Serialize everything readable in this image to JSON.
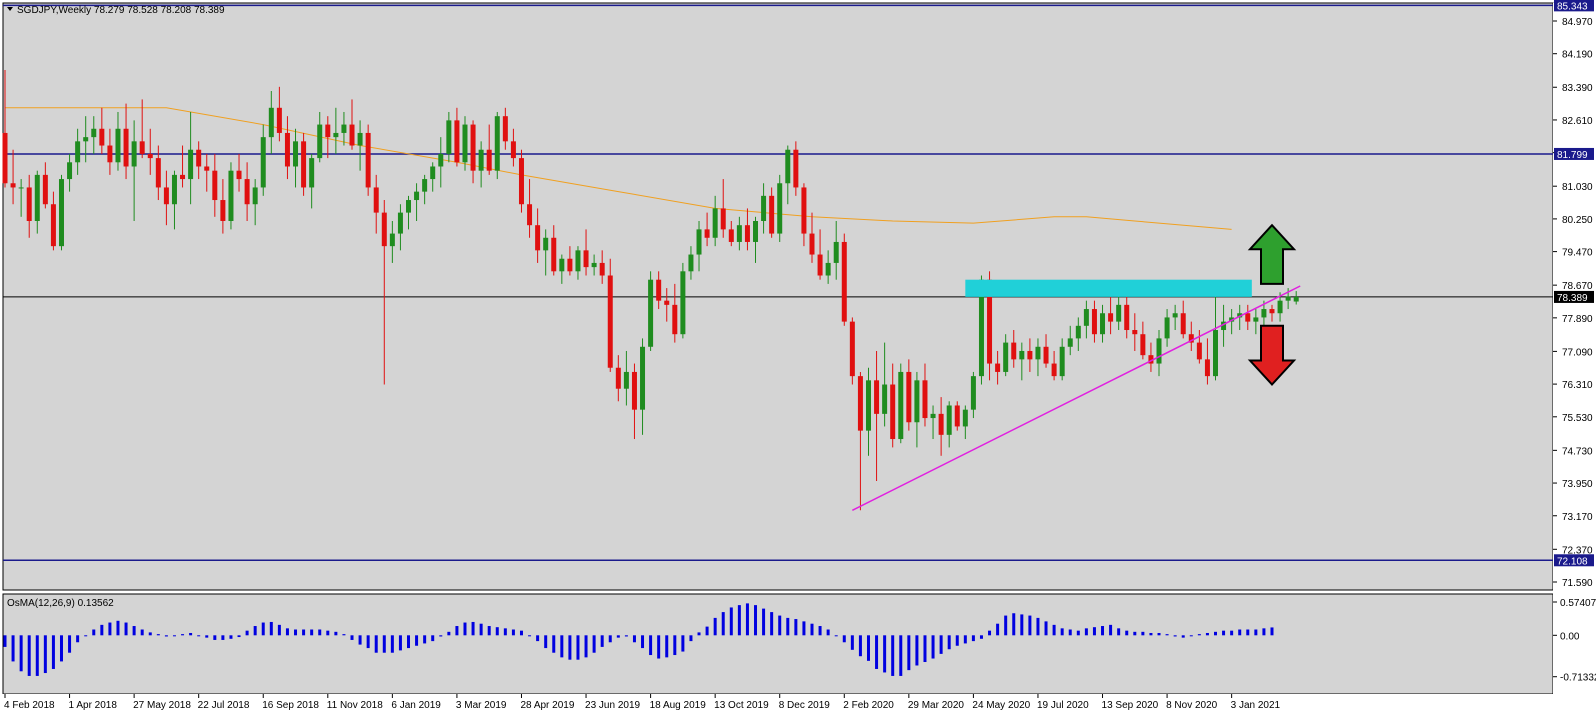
{
  "chart_data": {
    "type": "candlestick",
    "title": "SGDJPY,Weekly  78.279 78.528 78.208 78.389",
    "symbol": "SGDJPY",
    "timeframe": "Weekly",
    "ohlc_last": {
      "open": 78.279,
      "high": 78.528,
      "low": 78.208,
      "close": 78.389
    },
    "ylim": [
      71.2,
      85.5
    ],
    "y_ticks": [
      "84.970",
      "84.190",
      "83.390",
      "82.610",
      "81.830",
      "81.030",
      "80.250",
      "79.470",
      "78.670",
      "77.890",
      "77.090",
      "76.310",
      "75.530",
      "74.730",
      "73.950",
      "73.170",
      "72.370",
      "71.590"
    ],
    "y_tick_values": [
      84.97,
      84.19,
      83.39,
      82.61,
      81.83,
      81.03,
      80.25,
      79.47,
      78.67,
      77.89,
      77.09,
      76.31,
      75.53,
      74.73,
      73.95,
      73.17,
      72.37,
      71.59
    ],
    "x_tick_labels": [
      "4 Feb 2018",
      "1 Apr 2018",
      "27 May 2018",
      "22 Jul 2018",
      "16 Sep 2018",
      "11 Nov 2018",
      "6 Jan 2019",
      "3 Mar 2019",
      "28 Apr 2019",
      "23 Jun 2019",
      "18 Aug 2019",
      "13 Oct 2019",
      "8 Dec 2019",
      "2 Feb 2020",
      "29 Mar 2020",
      "24 May 2020",
      "19 Jul 2020",
      "13 Sep 2020",
      "8 Nov 2020",
      "3 Jan 2021"
    ],
    "x_tick_week_index": [
      0,
      8,
      16,
      24,
      32,
      40,
      48,
      56,
      64,
      72,
      80,
      88,
      96,
      104,
      112,
      120,
      128,
      136,
      144,
      152
    ],
    "candles": [
      [
        82.3,
        83.8,
        81.0,
        81.1
      ],
      [
        81.1,
        81.9,
        80.6,
        81.0
      ],
      [
        81.0,
        81.2,
        80.3,
        81.0
      ],
      [
        81.0,
        81.3,
        79.8,
        80.2
      ],
      [
        80.2,
        81.4,
        79.9,
        81.3
      ],
      [
        81.3,
        81.6,
        80.5,
        80.6
      ],
      [
        80.6,
        80.9,
        79.5,
        79.6
      ],
      [
        79.6,
        81.3,
        79.5,
        81.2
      ],
      [
        81.2,
        81.8,
        80.9,
        81.6
      ],
      [
        81.6,
        82.4,
        81.3,
        82.1
      ],
      [
        82.1,
        82.7,
        81.6,
        82.2
      ],
      [
        82.2,
        82.7,
        81.8,
        82.4
      ],
      [
        82.4,
        82.9,
        81.8,
        82.0
      ],
      [
        82.0,
        82.4,
        81.3,
        81.6
      ],
      [
        81.6,
        82.8,
        81.4,
        82.4
      ],
      [
        82.4,
        83.0,
        81.2,
        81.5
      ],
      [
        81.5,
        82.6,
        80.2,
        82.1
      ],
      [
        82.1,
        83.1,
        81.7,
        81.8
      ],
      [
        81.8,
        82.4,
        81.3,
        81.7
      ],
      [
        81.7,
        82.0,
        80.7,
        81.0
      ],
      [
        81.0,
        81.4,
        80.1,
        80.6
      ],
      [
        80.6,
        81.4,
        80.0,
        81.3
      ],
      [
        81.3,
        82.0,
        81.0,
        81.2
      ],
      [
        81.2,
        82.8,
        80.6,
        81.9
      ],
      [
        81.9,
        82.1,
        81.2,
        81.5
      ],
      [
        81.5,
        81.8,
        80.9,
        81.4
      ],
      [
        81.4,
        81.8,
        80.3,
        80.7
      ],
      [
        80.7,
        81.2,
        79.9,
        80.2
      ],
      [
        80.2,
        81.6,
        80.0,
        81.4
      ],
      [
        81.4,
        81.8,
        80.9,
        81.2
      ],
      [
        81.2,
        81.6,
        80.2,
        80.6
      ],
      [
        80.6,
        81.2,
        80.1,
        81.0
      ],
      [
        81.0,
        82.5,
        80.8,
        82.2
      ],
      [
        82.2,
        83.3,
        81.8,
        82.9
      ],
      [
        82.9,
        83.4,
        82.1,
        82.3
      ],
      [
        82.3,
        82.7,
        81.2,
        81.5
      ],
      [
        81.5,
        82.4,
        81.0,
        82.1
      ],
      [
        82.1,
        82.3,
        80.8,
        81.0
      ],
      [
        81.0,
        81.8,
        80.5,
        81.7
      ],
      [
        81.7,
        82.8,
        81.6,
        82.5
      ],
      [
        82.5,
        82.7,
        81.7,
        82.2
      ],
      [
        82.2,
        82.9,
        81.8,
        82.3
      ],
      [
        82.3,
        82.8,
        82.0,
        82.5
      ],
      [
        82.5,
        83.1,
        81.9,
        82.0
      ],
      [
        82.0,
        82.6,
        81.4,
        82.3
      ],
      [
        82.3,
        82.5,
        80.8,
        81.0
      ],
      [
        81.0,
        81.3,
        79.9,
        80.4
      ],
      [
        80.4,
        80.7,
        76.3,
        79.6
      ],
      [
        79.6,
        80.2,
        79.2,
        79.9
      ],
      [
        79.9,
        80.6,
        79.5,
        80.4
      ],
      [
        80.4,
        80.8,
        80.0,
        80.7
      ],
      [
        80.7,
        81.1,
        80.2,
        80.9
      ],
      [
        80.9,
        81.3,
        80.6,
        81.2
      ],
      [
        81.2,
        81.6,
        80.9,
        81.5
      ],
      [
        81.5,
        82.2,
        81.0,
        81.8
      ],
      [
        81.8,
        82.8,
        81.6,
        82.6
      ],
      [
        82.6,
        82.9,
        81.5,
        81.6
      ],
      [
        81.6,
        82.7,
        81.4,
        82.5
      ],
      [
        82.5,
        82.6,
        81.1,
        81.4
      ],
      [
        81.4,
        82.1,
        81.0,
        81.9
      ],
      [
        81.9,
        82.5,
        81.3,
        81.4
      ],
      [
        81.4,
        82.8,
        81.2,
        82.7
      ],
      [
        82.7,
        82.9,
        81.9,
        82.1
      ],
      [
        82.1,
        82.4,
        81.5,
        81.7
      ],
      [
        81.7,
        81.9,
        80.4,
        80.6
      ],
      [
        80.6,
        81.2,
        79.8,
        80.1
      ],
      [
        80.1,
        80.5,
        79.2,
        79.5
      ],
      [
        79.5,
        80.0,
        78.9,
        79.8
      ],
      [
        79.8,
        80.1,
        78.9,
        79.0
      ],
      [
        79.0,
        79.4,
        78.7,
        79.3
      ],
      [
        79.3,
        79.6,
        78.9,
        79.0
      ],
      [
        79.0,
        79.6,
        78.8,
        79.5
      ],
      [
        79.5,
        80.0,
        78.9,
        79.1
      ],
      [
        79.1,
        79.4,
        78.9,
        79.2
      ],
      [
        79.2,
        79.5,
        78.7,
        78.9
      ],
      [
        78.9,
        79.3,
        76.6,
        76.7
      ],
      [
        76.7,
        77.0,
        75.9,
        76.2
      ],
      [
        76.2,
        77.1,
        75.8,
        76.6
      ],
      [
        76.6,
        76.8,
        75.0,
        75.7
      ],
      [
        75.7,
        77.4,
        75.1,
        77.2
      ],
      [
        77.2,
        79.0,
        77.1,
        78.8
      ],
      [
        78.8,
        79.0,
        78.1,
        78.3
      ],
      [
        78.3,
        78.6,
        77.8,
        78.2
      ],
      [
        78.2,
        78.7,
        77.3,
        77.5
      ],
      [
        77.5,
        79.2,
        77.4,
        79.0
      ],
      [
        79.0,
        79.6,
        78.8,
        79.4
      ],
      [
        79.4,
        80.2,
        79.0,
        80.0
      ],
      [
        80.0,
        80.4,
        79.6,
        79.8
      ],
      [
        79.8,
        80.8,
        79.6,
        80.5
      ],
      [
        80.5,
        81.2,
        79.8,
        80.0
      ],
      [
        80.0,
        80.2,
        79.6,
        79.7
      ],
      [
        79.7,
        80.3,
        79.5,
        80.1
      ],
      [
        80.1,
        80.5,
        79.5,
        79.7
      ],
      [
        79.7,
        80.3,
        79.2,
        80.2
      ],
      [
        80.2,
        81.1,
        79.9,
        80.8
      ],
      [
        80.8,
        81.0,
        79.8,
        79.9
      ],
      [
        79.9,
        81.3,
        79.7,
        81.1
      ],
      [
        81.1,
        82.0,
        80.6,
        81.9
      ],
      [
        81.9,
        82.1,
        80.8,
        81.0
      ],
      [
        81.0,
        81.1,
        79.6,
        79.9
      ],
      [
        79.9,
        80.4,
        79.2,
        79.4
      ],
      [
        79.4,
        80.0,
        78.8,
        78.9
      ],
      [
        78.9,
        79.5,
        78.7,
        79.2
      ],
      [
        79.2,
        80.2,
        78.8,
        79.7
      ],
      [
        79.7,
        79.9,
        77.7,
        77.8
      ],
      [
        77.8,
        77.9,
        76.3,
        76.5
      ],
      [
        76.5,
        76.6,
        73.3,
        75.2
      ],
      [
        75.2,
        76.7,
        74.6,
        76.4
      ],
      [
        76.4,
        77.1,
        74.0,
        75.6
      ],
      [
        75.6,
        77.3,
        75.3,
        76.3
      ],
      [
        76.3,
        76.8,
        74.8,
        75.0
      ],
      [
        75.0,
        76.8,
        74.9,
        76.6
      ],
      [
        76.6,
        76.9,
        75.2,
        75.4
      ],
      [
        75.4,
        76.6,
        74.8,
        76.4
      ],
      [
        76.4,
        76.8,
        75.3,
        75.5
      ],
      [
        75.5,
        75.8,
        75.0,
        75.6
      ],
      [
        75.6,
        76.0,
        74.6,
        75.1
      ],
      [
        75.1,
        75.9,
        74.8,
        75.8
      ],
      [
        75.8,
        75.9,
        75.2,
        75.3
      ],
      [
        75.3,
        75.8,
        75.0,
        75.7
      ],
      [
        75.7,
        76.6,
        75.5,
        76.5
      ],
      [
        76.5,
        78.9,
        76.3,
        78.8
      ],
      [
        78.8,
        79.0,
        76.4,
        76.8
      ],
      [
        76.8,
        77.1,
        76.3,
        76.6
      ],
      [
        76.6,
        77.5,
        76.5,
        77.3
      ],
      [
        77.3,
        77.6,
        76.7,
        76.9
      ],
      [
        76.9,
        77.3,
        76.4,
        77.1
      ],
      [
        77.1,
        77.4,
        76.6,
        76.9
      ],
      [
        76.9,
        77.4,
        76.5,
        77.2
      ],
      [
        77.2,
        77.5,
        76.7,
        76.8
      ],
      [
        76.8,
        77.1,
        76.4,
        76.5
      ],
      [
        76.5,
        77.4,
        76.4,
        77.2
      ],
      [
        77.2,
        77.7,
        77.0,
        77.4
      ],
      [
        77.4,
        77.9,
        77.1,
        77.7
      ],
      [
        77.7,
        78.3,
        77.4,
        78.1
      ],
      [
        78.1,
        78.3,
        77.3,
        77.5
      ],
      [
        77.5,
        78.2,
        77.3,
        78.0
      ],
      [
        78.0,
        78.5,
        77.5,
        77.8
      ],
      [
        77.8,
        78.4,
        77.6,
        78.2
      ],
      [
        78.2,
        78.4,
        77.4,
        77.6
      ],
      [
        77.6,
        78.0,
        77.1,
        77.5
      ],
      [
        77.5,
        77.8,
        76.9,
        77.0
      ],
      [
        77.0,
        77.3,
        76.6,
        76.8
      ],
      [
        76.8,
        77.6,
        76.5,
        77.4
      ],
      [
        77.4,
        78.1,
        77.2,
        77.9
      ],
      [
        77.9,
        78.2,
        77.6,
        78.0
      ],
      [
        78.0,
        78.3,
        77.4,
        77.5
      ],
      [
        77.5,
        77.8,
        77.1,
        77.3
      ],
      [
        77.3,
        77.6,
        76.8,
        76.9
      ],
      [
        76.9,
        77.4,
        76.3,
        76.5
      ],
      [
        76.5,
        78.4,
        76.4,
        77.6
      ],
      [
        77.6,
        78.2,
        77.2,
        77.8
      ],
      [
        77.8,
        78.1,
        77.5,
        77.9
      ],
      [
        77.9,
        78.2,
        77.6,
        78.0
      ],
      [
        78.0,
        78.2,
        77.6,
        77.8
      ],
      [
        77.8,
        78.1,
        77.5,
        77.9
      ],
      [
        77.9,
        78.3,
        77.7,
        78.1
      ],
      [
        78.1,
        78.2,
        77.8,
        78.0
      ],
      [
        78.0,
        78.5,
        77.8,
        78.3
      ],
      [
        78.3,
        78.6,
        78.1,
        78.4
      ],
      [
        78.279,
        78.528,
        78.208,
        78.389
      ]
    ],
    "moving_average": {
      "color": "#f0a020",
      "points": [
        [
          0,
          82.9
        ],
        [
          20,
          82.9
        ],
        [
          32,
          82.5
        ],
        [
          44,
          82.0
        ],
        [
          56,
          81.6
        ],
        [
          64,
          81.3
        ],
        [
          76,
          80.9
        ],
        [
          88,
          80.5
        ],
        [
          100,
          80.3
        ],
        [
          110,
          80.2
        ],
        [
          120,
          80.15
        ],
        [
          130,
          80.3
        ],
        [
          134,
          80.3
        ],
        [
          140,
          80.2
        ],
        [
          152,
          80.0
        ]
      ]
    },
    "horizontal_levels": [
      {
        "value": 85.343,
        "label": "85.343",
        "color": "#1a1a8c"
      },
      {
        "value": 81.799,
        "label": "81.799",
        "color": "#1a1a8c"
      },
      {
        "value": 78.389,
        "label": "78.389",
        "color": "#000000"
      },
      {
        "value": 72.108,
        "label": "72.108",
        "color": "#1a1a8c"
      }
    ],
    "trendline": {
      "color": "#e020e0",
      "from": [
        105,
        73.3
      ],
      "to": [
        160.5,
        78.65
      ]
    },
    "resistance_zone": {
      "color": "#20d0d8",
      "from_week": 119,
      "to_week": 154.5,
      "low": 78.39,
      "high": 78.8
    },
    "arrows": [
      {
        "direction": "up",
        "color": "#2ea02e",
        "week": 157,
        "tip": 80.1,
        "base": 78.7
      },
      {
        "direction": "down",
        "color": "#e02020",
        "week": 157,
        "tip": 76.3,
        "base": 77.7
      }
    ],
    "bull_color": "#1f8c1f",
    "bear_color": "#e01010",
    "indicator": {
      "name": "OsMA(12,26,9) 0.13562",
      "value": 0.13562,
      "color": "#0000e0",
      "ylim": [
        -0.77,
        0.66
      ],
      "y_ticks": [
        "0.57407",
        "0.00",
        "-0.71332"
      ],
      "y_tick_values": [
        0.57407,
        0.0,
        -0.71332
      ],
      "values": [
        -0.2,
        -0.45,
        -0.62,
        -0.7,
        -0.7,
        -0.65,
        -0.58,
        -0.45,
        -0.3,
        -0.12,
        0.0,
        0.1,
        0.18,
        0.22,
        0.25,
        0.22,
        0.16,
        0.1,
        0.05,
        0.02,
        -0.02,
        0.0,
        0.02,
        0.04,
        0.0,
        -0.04,
        -0.08,
        -0.08,
        -0.06,
        -0.03,
        0.08,
        0.16,
        0.22,
        0.23,
        0.18,
        0.12,
        0.1,
        0.1,
        0.1,
        0.1,
        0.08,
        0.06,
        0.02,
        -0.08,
        -0.16,
        -0.22,
        -0.3,
        -0.3,
        -0.3,
        -0.26,
        -0.22,
        -0.18,
        -0.14,
        -0.1,
        -0.02,
        0.06,
        0.16,
        0.22,
        0.23,
        0.2,
        0.16,
        0.14,
        0.12,
        0.1,
        0.08,
        0.0,
        -0.1,
        -0.22,
        -0.3,
        -0.38,
        -0.42,
        -0.42,
        -0.38,
        -0.3,
        -0.2,
        -0.12,
        -0.04,
        -0.02,
        -0.12,
        -0.22,
        -0.34,
        -0.4,
        -0.38,
        -0.34,
        -0.28,
        -0.1,
        0.05,
        0.15,
        0.3,
        0.4,
        0.48,
        0.52,
        0.55,
        0.52,
        0.46,
        0.4,
        0.34,
        0.3,
        0.28,
        0.24,
        0.2,
        0.16,
        0.1,
        0.0,
        -0.12,
        -0.25,
        -0.36,
        -0.44,
        -0.58,
        -0.64,
        -0.7,
        -0.7,
        -0.6,
        -0.52,
        -0.46,
        -0.4,
        -0.32,
        -0.24,
        -0.18,
        -0.14,
        -0.1,
        -0.06,
        0.08,
        0.2,
        0.34,
        0.38,
        0.36,
        0.34,
        0.3,
        0.24,
        0.18,
        0.12,
        0.1,
        0.08,
        0.12,
        0.14,
        0.16,
        0.18,
        0.12,
        0.08,
        0.06,
        0.06,
        0.04,
        0.04,
        0.02,
        -0.02,
        -0.04,
        0.0,
        0.02,
        0.04,
        0.06,
        0.08,
        0.08,
        0.1,
        0.1,
        0.1,
        0.12,
        0.13562
      ]
    }
  }
}
